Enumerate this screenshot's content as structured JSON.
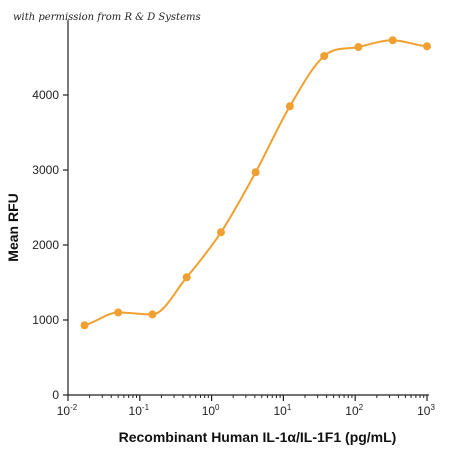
{
  "watermark": "with permission from R & D Systems",
  "colors": {
    "series": "#F0A030",
    "axis": "#222222"
  },
  "chart_data": {
    "type": "scatter",
    "title": "",
    "xlabel": "Recombinant Human IL-1α/IL-1F1 (pg/mL)",
    "ylabel": "Mean RFU",
    "xscale": "log",
    "xlim": [
      0.01,
      1000
    ],
    "ylim": [
      0,
      5000
    ],
    "x_tick_labels": [
      {
        "base": "10",
        "exp": "-2"
      },
      {
        "base": "10",
        "exp": "-1"
      },
      {
        "base": "10",
        "exp": "0"
      },
      {
        "base": "10",
        "exp": "1"
      },
      {
        "base": "10",
        "exp": "2"
      },
      {
        "base": "10",
        "exp": "3"
      }
    ],
    "y_ticks": [
      0,
      1000,
      2000,
      3000,
      4000
    ],
    "y_tick_labels": [
      "0",
      "1000",
      "2000",
      "3000",
      "4000"
    ],
    "grid": false,
    "legend": "none",
    "series": [
      {
        "x": [
          0.017,
          0.05,
          0.15,
          0.45,
          1.35,
          4.1,
          12.3,
          37,
          111,
          333,
          1000
        ],
        "y": [
          930,
          1100,
          1075,
          1570,
          2170,
          2970,
          3850,
          4520,
          4640,
          4730,
          4650
        ],
        "fit": "four-parameter logistic"
      }
    ]
  }
}
